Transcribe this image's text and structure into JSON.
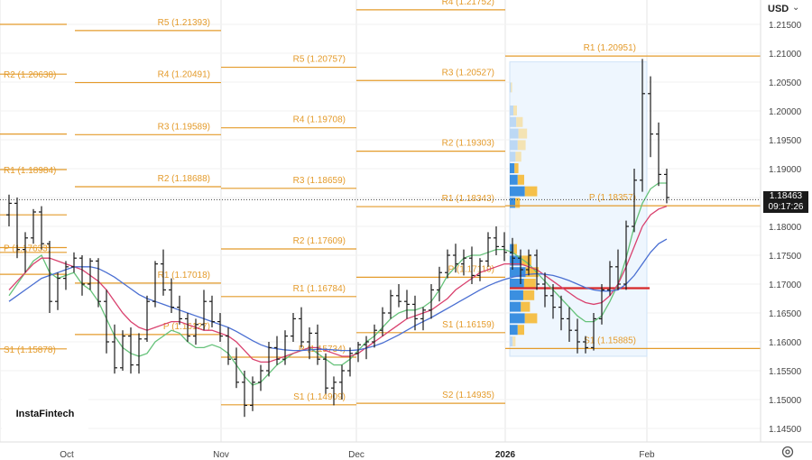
{
  "header": {
    "currency": "USD",
    "currency_menu_icon": "chevron-down-icon"
  },
  "logo": {
    "text": "InstaFintech"
  },
  "current_price": {
    "value": "1.18463",
    "countdown": "09:17:26"
  },
  "settings": {
    "icon": "settings-icon"
  },
  "colors": {
    "pivot": "#e49b2b",
    "candle": "#1a1a1a",
    "ma_fast": "#66c27a",
    "ma_mid": "#d9416e",
    "ma_slow": "#4a6fd2",
    "volume_profile_bg": "#eef6fe",
    "volume_profile_bar": "#3b8fe0",
    "volume_profile_value_area": "#f5c04a",
    "poc": "#d62728",
    "current_price_line": "#444444"
  },
  "chart_data": {
    "type": "line",
    "title": "",
    "xlabel": "",
    "ylabel": "",
    "ylim": [
      1.1415,
      1.2175
    ],
    "x_ticks": [
      "Oct",
      "Nov",
      "Dec",
      "2026",
      "Feb"
    ],
    "y_ticks": [
      "1.21500",
      "1.21000",
      "1.20500",
      "1.20000",
      "1.19500",
      "1.19000",
      "1.18500",
      "1.18000",
      "1.17500",
      "1.17000",
      "1.16500",
      "1.16000",
      "1.15500",
      "1.15000",
      "1.14500"
    ],
    "series": [
      {
        "name": "",
        "type": "ohlc",
        "values": [
          [
            1.182,
            1.1855,
            1.18,
            1.184
          ],
          [
            1.184,
            1.185,
            1.1745,
            1.176
          ],
          [
            1.176,
            1.179,
            1.172,
            1.178
          ],
          [
            1.178,
            1.183,
            1.177,
            1.1825
          ],
          [
            1.1825,
            1.1835,
            1.176,
            1.177
          ],
          [
            1.177,
            1.1775,
            1.165,
            1.167
          ],
          [
            1.167,
            1.172,
            1.1655,
            1.171
          ],
          [
            1.171,
            1.174,
            1.169,
            1.173
          ],
          [
            1.173,
            1.1755,
            1.172,
            1.1745
          ],
          [
            1.1745,
            1.175,
            1.168,
            1.17
          ],
          [
            1.17,
            1.1745,
            1.169,
            1.174
          ],
          [
            1.174,
            1.1745,
            1.166,
            1.167
          ],
          [
            1.167,
            1.169,
            1.158,
            1.16
          ],
          [
            1.16,
            1.163,
            1.1545,
            1.1555
          ],
          [
            1.1555,
            1.162,
            1.155,
            1.161
          ],
          [
            1.161,
            1.1625,
            1.1545,
            1.156
          ],
          [
            1.156,
            1.1615,
            1.1545,
            1.1605
          ],
          [
            1.1605,
            1.168,
            1.16,
            1.167
          ],
          [
            1.167,
            1.174,
            1.166,
            1.1735
          ],
          [
            1.1735,
            1.176,
            1.168,
            1.169
          ],
          [
            1.169,
            1.171,
            1.165,
            1.166
          ],
          [
            1.166,
            1.168,
            1.163,
            1.164
          ],
          [
            1.164,
            1.165,
            1.16,
            1.161
          ],
          [
            1.161,
            1.164,
            1.1595,
            1.163
          ],
          [
            1.163,
            1.169,
            1.162,
            1.167
          ],
          [
            1.167,
            1.168,
            1.1625,
            1.1635
          ],
          [
            1.1635,
            1.165,
            1.16,
            1.161
          ],
          [
            1.161,
            1.1625,
            1.156,
            1.157
          ],
          [
            1.157,
            1.159,
            1.152,
            1.153
          ],
          [
            1.153,
            1.155,
            1.147,
            1.149
          ],
          [
            1.149,
            1.154,
            1.148,
            1.153
          ],
          [
            1.153,
            1.156,
            1.1515,
            1.155
          ],
          [
            1.155,
            1.16,
            1.154,
            1.159
          ],
          [
            1.159,
            1.161,
            1.156,
            1.157
          ],
          [
            1.157,
            1.162,
            1.156,
            1.161
          ],
          [
            1.161,
            1.165,
            1.16,
            1.164
          ],
          [
            1.164,
            1.166,
            1.159,
            1.16
          ],
          [
            1.16,
            1.1625,
            1.157,
            1.1615
          ],
          [
            1.1615,
            1.163,
            1.156,
            1.157
          ],
          [
            1.157,
            1.158,
            1.151,
            1.152
          ],
          [
            1.152,
            1.154,
            1.149,
            1.153
          ],
          [
            1.153,
            1.156,
            1.15,
            1.155
          ],
          [
            1.155,
            1.159,
            1.154,
            1.158
          ],
          [
            1.158,
            1.16,
            1.1565,
            1.1595
          ],
          [
            1.1595,
            1.161,
            1.157,
            1.16
          ],
          [
            1.16,
            1.163,
            1.159,
            1.162
          ],
          [
            1.162,
            1.166,
            1.161,
            1.165
          ],
          [
            1.165,
            1.169,
            1.164,
            1.168
          ],
          [
            1.168,
            1.17,
            1.166,
            1.167
          ],
          [
            1.167,
            1.169,
            1.164,
            1.1665
          ],
          [
            1.1665,
            1.168,
            1.162,
            1.164
          ],
          [
            1.164,
            1.166,
            1.162,
            1.1655
          ],
          [
            1.1655,
            1.17,
            1.164,
            1.169
          ],
          [
            1.169,
            1.173,
            1.167,
            1.172
          ],
          [
            1.172,
            1.176,
            1.171,
            1.175
          ],
          [
            1.175,
            1.177,
            1.172,
            1.1735
          ],
          [
            1.1735,
            1.176,
            1.1715,
            1.1745
          ],
          [
            1.1745,
            1.1765,
            1.17,
            1.1715
          ],
          [
            1.1715,
            1.1745,
            1.1705,
            1.174
          ],
          [
            1.174,
            1.179,
            1.173,
            1.178
          ],
          [
            1.178,
            1.18,
            1.175,
            1.1765
          ],
          [
            1.1765,
            1.179,
            1.174,
            1.1755
          ],
          [
            1.1755,
            1.178,
            1.1725,
            1.1745
          ],
          [
            1.1745,
            1.176,
            1.17,
            1.1725
          ],
          [
            1.1725,
            1.176,
            1.1715,
            1.175
          ],
          [
            1.175,
            1.176,
            1.169,
            1.17
          ],
          [
            1.17,
            1.172,
            1.166,
            1.168
          ],
          [
            1.168,
            1.17,
            1.164,
            1.166
          ],
          [
            1.166,
            1.168,
            1.162,
            1.164
          ],
          [
            1.164,
            1.166,
            1.16,
            1.162
          ],
          [
            1.162,
            1.164,
            1.158,
            1.16
          ],
          [
            1.16,
            1.161,
            1.158,
            1.159
          ],
          [
            1.159,
            1.165,
            1.1585,
            1.164
          ],
          [
            1.164,
            1.17,
            1.163,
            1.169
          ],
          [
            1.169,
            1.174,
            1.168,
            1.173
          ],
          [
            1.173,
            1.176,
            1.169,
            1.17
          ],
          [
            1.17,
            1.181,
            1.169,
            1.18
          ],
          [
            1.18,
            1.19,
            1.179,
            1.188
          ],
          [
            1.188,
            1.209,
            1.186,
            1.203
          ],
          [
            1.203,
            1.206,
            1.192,
            1.196
          ],
          [
            1.196,
            1.198,
            1.187,
            1.189
          ],
          [
            1.189,
            1.19,
            1.184,
            1.185
          ]
        ]
      },
      {
        "name": "",
        "values": [
          1.168,
          1.17,
          1.172,
          1.174,
          1.175,
          1.172,
          1.171,
          1.1715,
          1.172,
          1.17,
          1.169,
          1.167,
          1.164,
          1.161,
          1.159,
          1.158,
          1.1575,
          1.158,
          1.16,
          1.161,
          1.162,
          1.1615,
          1.16,
          1.159,
          1.159,
          1.1595,
          1.159,
          1.158,
          1.156,
          1.154,
          1.1525,
          1.153,
          1.1545,
          1.156,
          1.157,
          1.158,
          1.1585,
          1.159,
          1.158,
          1.157,
          1.156,
          1.156,
          1.157,
          1.1585,
          1.16,
          1.161,
          1.1625,
          1.164,
          1.165,
          1.1655,
          1.1655,
          1.166,
          1.167,
          1.169,
          1.1715,
          1.173,
          1.1745,
          1.175,
          1.175,
          1.1755,
          1.176,
          1.176,
          1.1755,
          1.1745,
          1.1735,
          1.172,
          1.1705,
          1.169,
          1.1675,
          1.166,
          1.1645,
          1.1635,
          1.1635,
          1.1645,
          1.167,
          1.17,
          1.1745,
          1.18,
          1.184,
          1.1865,
          1.1875,
          1.1875
        ]
      },
      {
        "name": "",
        "values": [
          1.169,
          1.1705,
          1.172,
          1.1735,
          1.1745,
          1.1745,
          1.174,
          1.1735,
          1.173,
          1.1725,
          1.1715,
          1.1705,
          1.169,
          1.167,
          1.165,
          1.1635,
          1.1625,
          1.162,
          1.1625,
          1.163,
          1.1635,
          1.1635,
          1.163,
          1.1625,
          1.162,
          1.162,
          1.1615,
          1.161,
          1.16,
          1.1585,
          1.157,
          1.1565,
          1.1565,
          1.157,
          1.1575,
          1.158,
          1.1585,
          1.159,
          1.159,
          1.1585,
          1.158,
          1.1575,
          1.1575,
          1.158,
          1.159,
          1.16,
          1.161,
          1.162,
          1.163,
          1.164,
          1.1645,
          1.165,
          1.1655,
          1.1665,
          1.1675,
          1.169,
          1.17,
          1.171,
          1.172,
          1.1725,
          1.173,
          1.1735,
          1.1735,
          1.1735,
          1.173,
          1.1725,
          1.1715,
          1.1705,
          1.1695,
          1.1685,
          1.1675,
          1.1668,
          1.1665,
          1.1668,
          1.168,
          1.17,
          1.173,
          1.1765,
          1.18,
          1.182,
          1.183,
          1.1835
        ]
      },
      {
        "name": "",
        "values": [
          1.167,
          1.168,
          1.169,
          1.17,
          1.171,
          1.1715,
          1.172,
          1.1725,
          1.173,
          1.173,
          1.173,
          1.1727,
          1.172,
          1.1712,
          1.1702,
          1.1692,
          1.1682,
          1.1675,
          1.167,
          1.1665,
          1.166,
          1.1655,
          1.165,
          1.1645,
          1.164,
          1.1635,
          1.163,
          1.1625,
          1.1618,
          1.161,
          1.1602,
          1.1595,
          1.159,
          1.1588,
          1.1586,
          1.1585,
          1.1585,
          1.1586,
          1.1587,
          1.1587,
          1.1586,
          1.1585,
          1.1585,
          1.1586,
          1.1589,
          1.1593,
          1.1598,
          1.1605,
          1.1612,
          1.162,
          1.1628,
          1.1635,
          1.1642,
          1.165,
          1.1658,
          1.1666,
          1.1674,
          1.1682,
          1.169,
          1.1697,
          1.1703,
          1.1708,
          1.1712,
          1.1715,
          1.1717,
          1.1718,
          1.1717,
          1.1715,
          1.1711,
          1.1706,
          1.17,
          1.1694,
          1.169,
          1.1688,
          1.1688,
          1.169,
          1.17,
          1.1715,
          1.1735,
          1.1755,
          1.177,
          1.1778
        ]
      }
    ],
    "pivot_levels": [
      {
        "label": "R2 (1.20638)",
        "value": 1.20638
      },
      {
        "label": "R1 (1.18984)",
        "value": 1.18984
      },
      {
        "label": "P (1.17633)",
        "value": 1.17633
      },
      {
        "label": "S1 (1.15878)",
        "value": 1.15878
      },
      {
        "label": "R5 (1.21393)",
        "value": 1.21393
      },
      {
        "label": "R4 (1.20491)",
        "value": 1.20491
      },
      {
        "label": "R3 (1.19589)",
        "value": 1.19589
      },
      {
        "label": "R2 (1.18688)",
        "value": 1.18688
      },
      {
        "label": "R1 (1.17018)",
        "value": 1.17018
      },
      {
        "label": "P (1.16127)",
        "value": 1.16127
      },
      {
        "label": "R5 (1.20757)",
        "value": 1.20757
      },
      {
        "label": "R4 (1.19708)",
        "value": 1.19708
      },
      {
        "label": "R3 (1.18659)",
        "value": 1.18659
      },
      {
        "label": "R2 (1.17609)",
        "value": 1.17609
      },
      {
        "label": "R1 (1.16784)",
        "value": 1.16784
      },
      {
        "label": "P (1.15734)",
        "value": 1.15734
      },
      {
        "label": "S1 (1.14909)",
        "value": 1.14909
      },
      {
        "label": "R4 (1.21752)",
        "value": 1.21752
      },
      {
        "label": "R3 (1.20527)",
        "value": 1.20527
      },
      {
        "label": "R2 (1.19303)",
        "value": 1.19303
      },
      {
        "label": "R1 (1.18343)",
        "value": 1.18343
      },
      {
        "label": "P (1.17119)",
        "value": 1.17119
      },
      {
        "label": "S1 (1.16159)",
        "value": 1.16159
      },
      {
        "label": "S2 (1.14935)",
        "value": 1.14935
      },
      {
        "label": "R1 (1.20951)",
        "value": 1.20951
      },
      {
        "label": "P (1.18357)",
        "value": 1.18357
      },
      {
        "label": "S1 (1.15885)",
        "value": 1.15885
      }
    ],
    "volume_profile": {
      "price_range": [
        1.1575,
        1.2085
      ],
      "point_of_control": 1.1693,
      "bins": [
        {
          "price": 1.204,
          "volume": 0.08,
          "value_area": false
        },
        {
          "price": 1.2,
          "volume": 0.25,
          "value_area": false
        },
        {
          "price": 1.198,
          "volume": 0.45,
          "value_area": false
        },
        {
          "price": 1.196,
          "volume": 0.6,
          "value_area": false
        },
        {
          "price": 1.194,
          "volume": 0.55,
          "value_area": false
        },
        {
          "price": 1.192,
          "volume": 0.4,
          "value_area": false
        },
        {
          "price": 1.19,
          "volume": 0.3,
          "value_area": true
        },
        {
          "price": 1.188,
          "volume": 0.5,
          "value_area": true
        },
        {
          "price": 1.186,
          "volume": 0.95,
          "value_area": true
        },
        {
          "price": 1.184,
          "volume": 0.35,
          "value_area": true
        },
        {
          "price": 1.176,
          "volume": 0.25,
          "value_area": true
        },
        {
          "price": 1.174,
          "volume": 0.75,
          "value_area": true
        },
        {
          "price": 1.172,
          "volume": 1.0,
          "value_area": true
        },
        {
          "price": 1.17,
          "volume": 0.9,
          "value_area": true
        },
        {
          "price": 1.168,
          "volume": 0.85,
          "value_area": true
        },
        {
          "price": 1.166,
          "volume": 0.7,
          "value_area": true
        },
        {
          "price": 1.164,
          "volume": 0.95,
          "value_area": true
        },
        {
          "price": 1.162,
          "volume": 0.5,
          "value_area": true
        },
        {
          "price": 1.16,
          "volume": 0.2,
          "value_area": false
        }
      ]
    },
    "grid": true,
    "legend": "none"
  }
}
